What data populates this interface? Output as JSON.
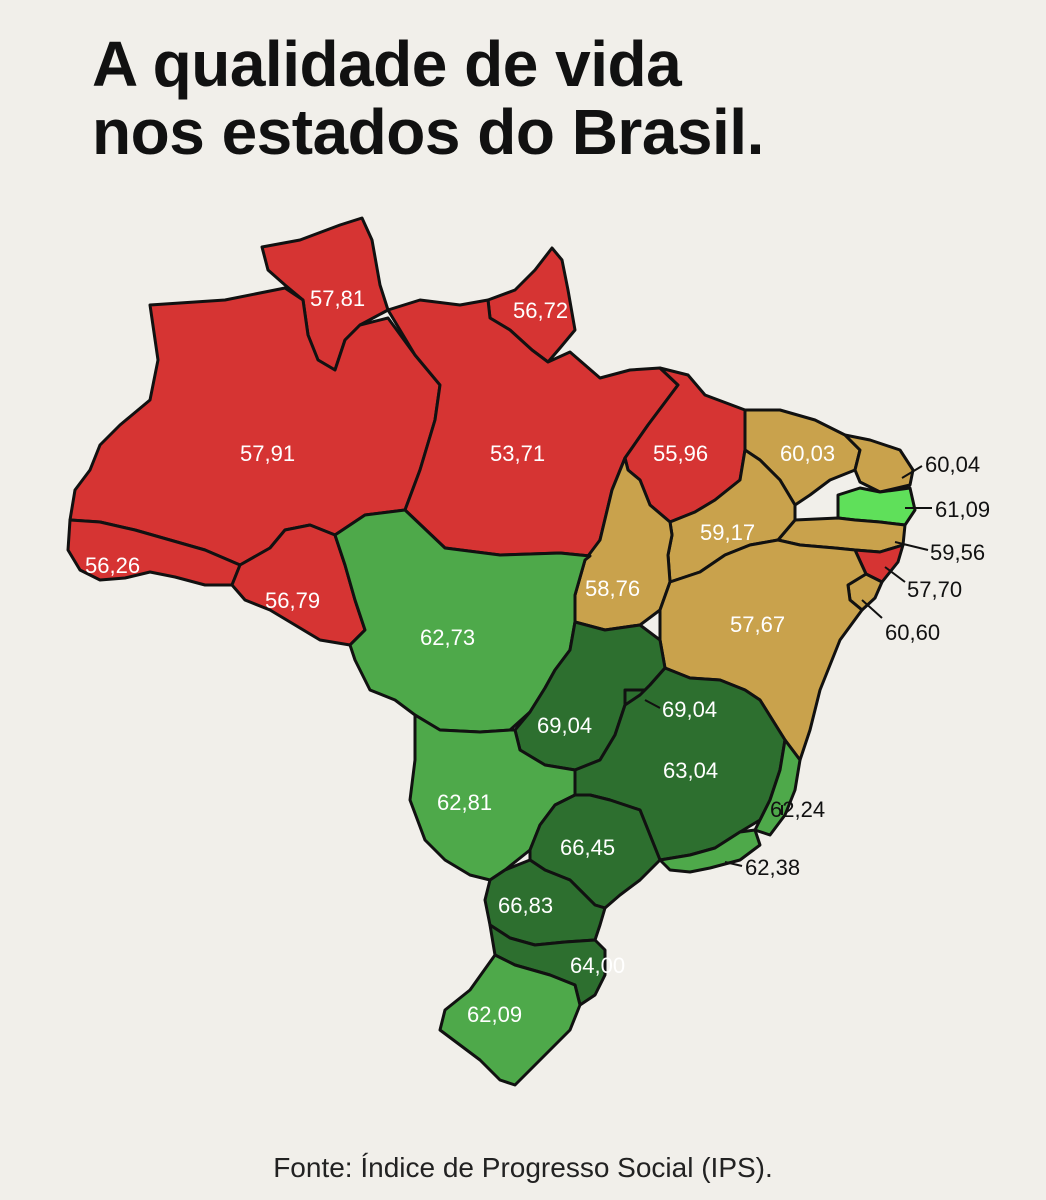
{
  "title": {
    "line1": "A qualidade de vida",
    "line2": "nos estados do Brasil."
  },
  "source": "Fonte: Índice de Progresso Social (IPS).",
  "colors": {
    "background": "#f1efea",
    "red": "#d63433",
    "tan": "#c9a24c",
    "light_green": "#4ea94a",
    "dark_green": "#2d6f2f",
    "bright_green": "#5fe05a",
    "border": "#111111"
  },
  "states": [
    {
      "id": "rr",
      "value": "57,81",
      "color": "red"
    },
    {
      "id": "ap",
      "value": "56,72",
      "color": "red"
    },
    {
      "id": "am",
      "value": "57,91",
      "color": "red"
    },
    {
      "id": "pa",
      "value": "53,71",
      "color": "red"
    },
    {
      "id": "ma",
      "value": "55,96",
      "color": "red"
    },
    {
      "id": "ce",
      "value": "60,03",
      "color": "tan"
    },
    {
      "id": "rn",
      "value": "60,04",
      "color": "tan"
    },
    {
      "id": "pb",
      "value": "61,09",
      "color": "bright_green"
    },
    {
      "id": "pe",
      "value": "59,56",
      "color": "tan"
    },
    {
      "id": "al",
      "value": "57,70",
      "color": "red"
    },
    {
      "id": "se",
      "value": "60,60",
      "color": "tan"
    },
    {
      "id": "pi",
      "value": "59,17",
      "color": "tan"
    },
    {
      "id": "ac",
      "value": "56,26",
      "color": "red"
    },
    {
      "id": "ro",
      "value": "56,79",
      "color": "red"
    },
    {
      "id": "to",
      "value": "58,76",
      "color": "tan"
    },
    {
      "id": "ba",
      "value": "57,67",
      "color": "tan"
    },
    {
      "id": "mt",
      "value": "62,73",
      "color": "light_green"
    },
    {
      "id": "go",
      "value": "69,04",
      "color": "dark_green"
    },
    {
      "id": "df",
      "value": "69,04",
      "color": "dark_green"
    },
    {
      "id": "mg",
      "value": "63,04",
      "color": "dark_green"
    },
    {
      "id": "es",
      "value": "62,24",
      "color": "light_green"
    },
    {
      "id": "ms",
      "value": "62,81",
      "color": "light_green"
    },
    {
      "id": "sp",
      "value": "66,45",
      "color": "dark_green"
    },
    {
      "id": "rj",
      "value": "62,38",
      "color": "light_green"
    },
    {
      "id": "pr",
      "value": "66,83",
      "color": "dark_green"
    },
    {
      "id": "sc",
      "value": "64,00",
      "color": "dark_green"
    },
    {
      "id": "rs",
      "value": "62,09",
      "color": "light_green"
    }
  ]
}
